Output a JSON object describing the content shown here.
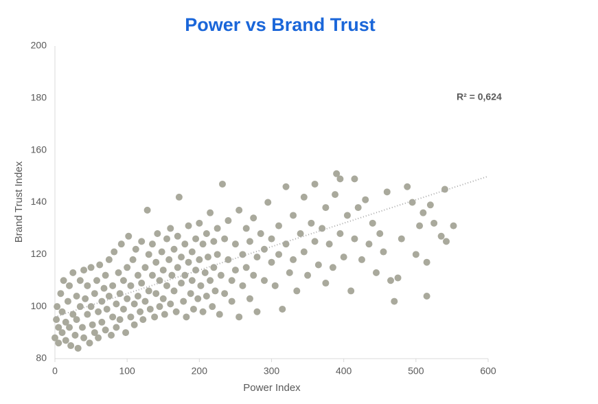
{
  "chart_data": {
    "type": "scatter",
    "title": "Power vs Brand Trust",
    "x_label": "Power Index",
    "y_label": "Brand Trust Index",
    "annotation": "R² = 0,624",
    "color": "#a9a99c",
    "trendline": {
      "slope": 0.09,
      "intercept": 96,
      "color": "#a6a6a6"
    },
    "xlim": [
      0,
      600
    ],
    "xticks": [
      0,
      100,
      200,
      300,
      400,
      500,
      600
    ],
    "ylim": [
      80,
      200
    ],
    "yticks": [
      80,
      100,
      120,
      140,
      160,
      180,
      200
    ],
    "grid": false,
    "x": [
      0,
      2,
      3,
      5,
      5,
      8,
      10,
      10,
      12,
      15,
      15,
      18,
      20,
      20,
      22,
      25,
      25,
      28,
      30,
      30,
      32,
      35,
      35,
      38,
      40,
      40,
      42,
      45,
      45,
      48,
      50,
      50,
      52,
      55,
      55,
      58,
      60,
      60,
      62,
      65,
      65,
      68,
      70,
      70,
      72,
      75,
      75,
      78,
      80,
      80,
      82,
      85,
      85,
      88,
      90,
      90,
      92,
      95,
      95,
      98,
      100,
      100,
      102,
      105,
      105,
      108,
      110,
      110,
      112,
      115,
      115,
      118,
      120,
      120,
      122,
      125,
      125,
      128,
      130,
      130,
      132,
      135,
      135,
      138,
      140,
      140,
      142,
      145,
      145,
      148,
      150,
      150,
      152,
      155,
      155,
      158,
      160,
      160,
      162,
      165,
      165,
      168,
      170,
      170,
      172,
      175,
      175,
      178,
      180,
      180,
      182,
      185,
      185,
      188,
      190,
      190,
      192,
      195,
      195,
      198,
      200,
      200,
      202,
      205,
      205,
      208,
      210,
      210,
      212,
      215,
      215,
      218,
      220,
      220,
      222,
      225,
      225,
      228,
      232,
      230,
      235,
      235,
      240,
      240,
      245,
      245,
      250,
      250,
      255,
      255,
      260,
      260,
      265,
      265,
      270,
      270,
      275,
      275,
      280,
      280,
      285,
      290,
      290,
      295,
      300,
      300,
      305,
      310,
      310,
      315,
      320,
      320,
      325,
      330,
      330,
      335,
      340,
      345,
      345,
      350,
      355,
      360,
      360,
      365,
      370,
      375,
      375,
      380,
      385,
      388,
      390,
      395,
      395,
      400,
      405,
      410,
      415,
      415,
      420,
      425,
      430,
      435,
      440,
      445,
      450,
      455,
      460,
      465,
      470,
      475,
      480,
      488,
      495,
      500,
      505,
      510,
      515,
      515,
      520,
      525,
      535,
      540,
      542,
      552
    ],
    "values": [
      88,
      95,
      100,
      92,
      86,
      105,
      90,
      98,
      110,
      94,
      87,
      102,
      108,
      92,
      85,
      97,
      113,
      89,
      104,
      95,
      84,
      100,
      110,
      92,
      114,
      88,
      103,
      97,
      108,
      86,
      100,
      115,
      93,
      105,
      90,
      110,
      98,
      88,
      116,
      102,
      94,
      107,
      91,
      112,
      99,
      118,
      104,
      89,
      108,
      96,
      121,
      101,
      92,
      113,
      105,
      95,
      124,
      110,
      99,
      90,
      115,
      103,
      127,
      108,
      96,
      118,
      101,
      93,
      122,
      112,
      104,
      98,
      125,
      109,
      95,
      115,
      102,
      137,
      120,
      106,
      99,
      112,
      124,
      96,
      117,
      105,
      128,
      110,
      100,
      121,
      114,
      103,
      97,
      126,
      108,
      118,
      101,
      130,
      112,
      122,
      106,
      98,
      115,
      127,
      142,
      109,
      119,
      102,
      124,
      112,
      96,
      131,
      117,
      105,
      121,
      110,
      99,
      126,
      114,
      103,
      132,
      118,
      108,
      124,
      98,
      113,
      128,
      104,
      119,
      136,
      110,
      100,
      125,
      115,
      106,
      130,
      120,
      97,
      147,
      112,
      126,
      105,
      118,
      133,
      110,
      102,
      124,
      114,
      137,
      96,
      120,
      108,
      130,
      115,
      125,
      103,
      134,
      112,
      119,
      98,
      128,
      122,
      110,
      140,
      117,
      126,
      108,
      131,
      120,
      99,
      146,
      124,
      113,
      135,
      118,
      106,
      128,
      121,
      142,
      112,
      132,
      125,
      147,
      116,
      130,
      138,
      109,
      124,
      115,
      143,
      151,
      149,
      128,
      119,
      135,
      106,
      149,
      126,
      138,
      118,
      141,
      124,
      132,
      113,
      128,
      121,
      144,
      110,
      102,
      111,
      126,
      146,
      140,
      120,
      131,
      136,
      104,
      117,
      139,
      132,
      127,
      145,
      125,
      131
    ]
  }
}
